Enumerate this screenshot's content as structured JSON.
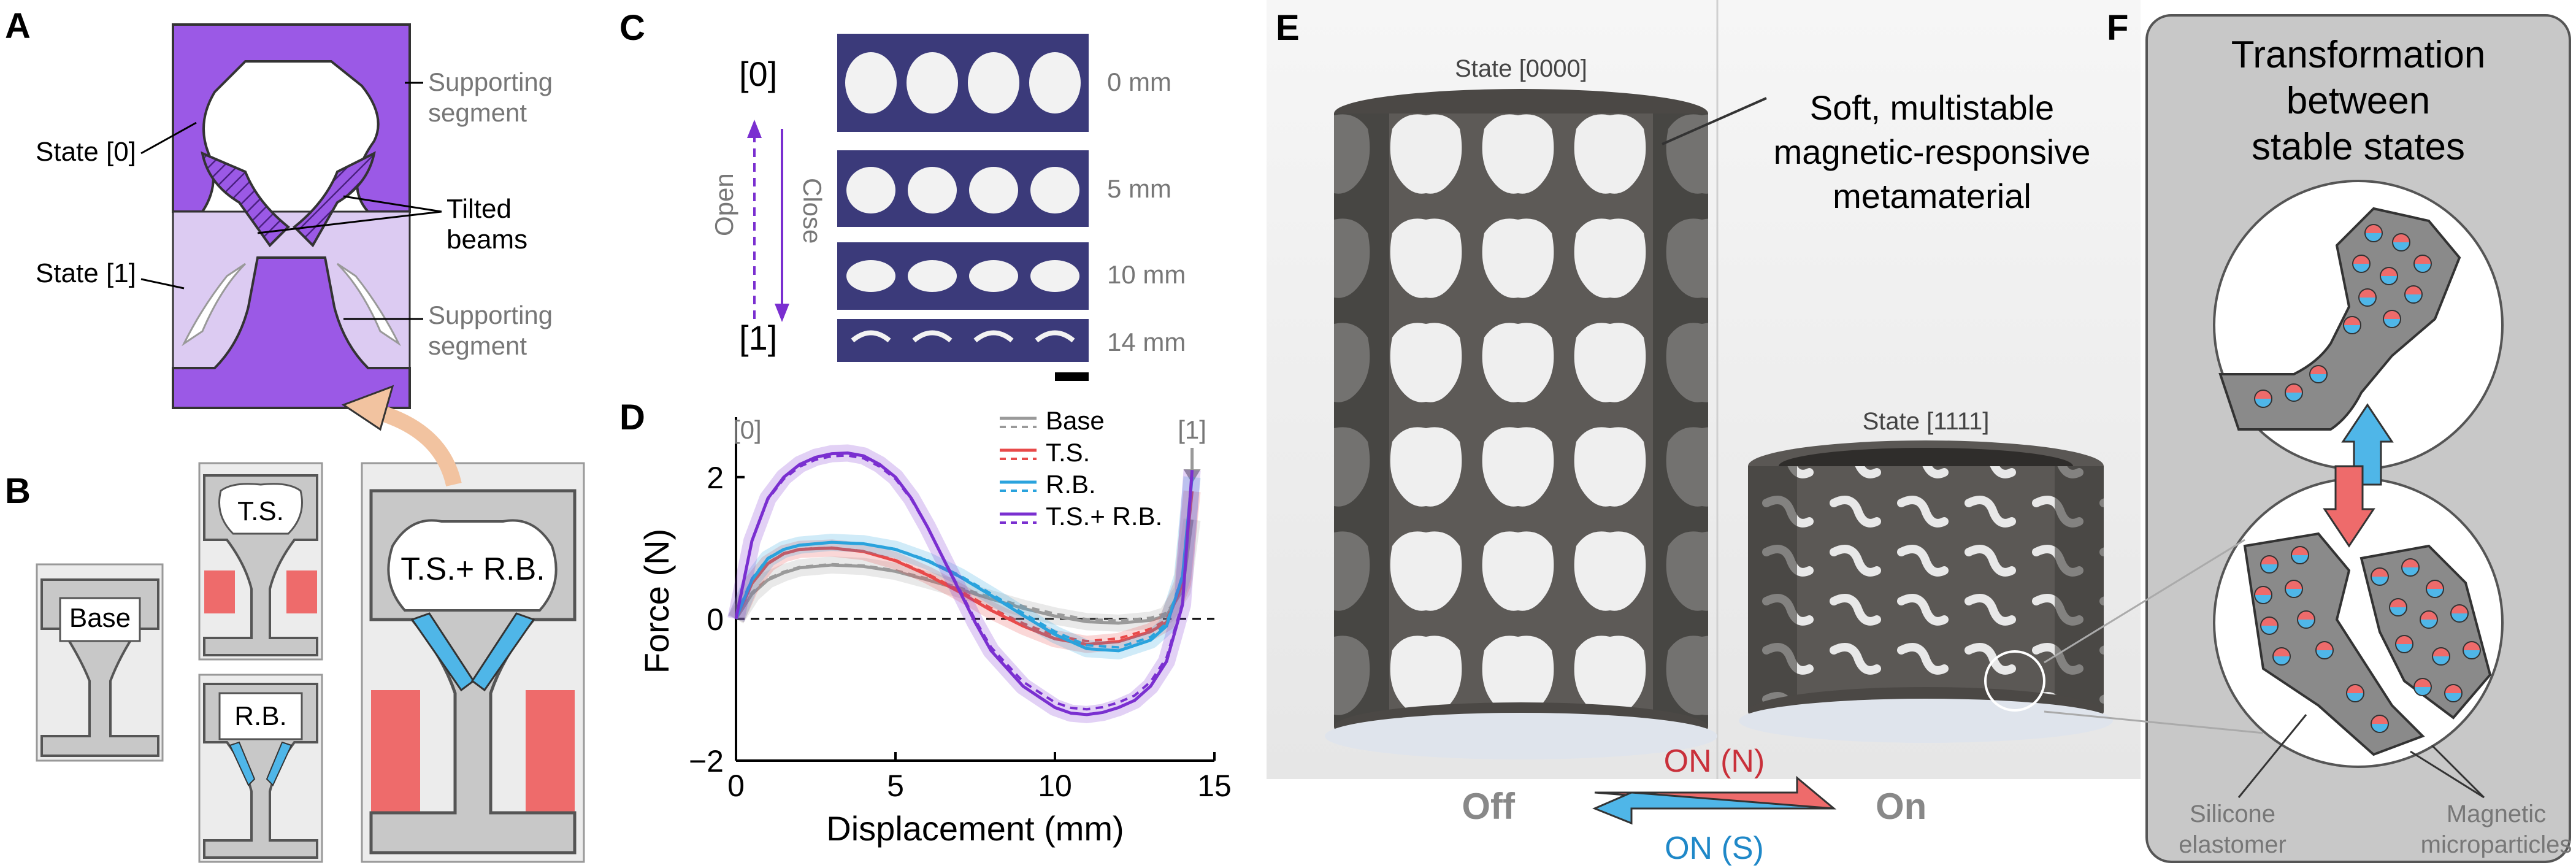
{
  "panels": {
    "A": {
      "label": "A",
      "state0": "State [0]",
      "state1": "State [1]",
      "supporting_top": [
        "Supporting",
        "segment"
      ],
      "tilted": [
        "Tilted",
        "beams"
      ],
      "supporting_bottom": [
        "Supporting",
        "segment"
      ]
    },
    "B": {
      "label": "B",
      "base": "Base",
      "ts": "T.S.",
      "rb": "R.B.",
      "tsrb": "T.S.+ R.B."
    },
    "C": {
      "label": "C",
      "state0": "[0]",
      "state1": "[1]",
      "open": "Open",
      "close": "Close",
      "displacements": [
        "0 mm",
        "5 mm",
        "10 mm",
        "14 mm"
      ]
    },
    "E": {
      "label": "E",
      "state_tall": "State [0000]",
      "state_short": "State [1111]",
      "callout": [
        "Soft, multistable",
        "magnetic-responsive",
        "metamaterial"
      ],
      "off": "Off",
      "on": "On",
      "on_n": "ON (N)",
      "on_s": "ON (S)"
    },
    "F": {
      "label": "F",
      "title": [
        "Transformation",
        "between",
        "stable states"
      ],
      "silicone": [
        "Silicone",
        "elastomer"
      ],
      "magnetic": [
        "Magnetic",
        "microparticles"
      ]
    }
  },
  "colors": {
    "purple": "#9b59e6",
    "light_purple": "#dccbf2",
    "red": "#ee6b6b",
    "blue": "#4fb6e8",
    "gray_fill": "#c8c8c8",
    "navy": "#3b3a7a"
  },
  "chart_data": {
    "type": "line",
    "panel_label": "D",
    "xlabel": "Displacement (mm)",
    "ylabel": "Force (N)",
    "xlim": [
      0,
      15
    ],
    "ylim": [
      -2,
      2.5
    ],
    "xticks": [
      0,
      5,
      10,
      15
    ],
    "yticks": [
      -2,
      0,
      2
    ],
    "top_annotations": [
      "[0]",
      "[1]"
    ],
    "legend_position": "top-right",
    "series": [
      {
        "name": "Base",
        "color": "#9a9a9a",
        "x": [
          0,
          0.5,
          1,
          1.5,
          2,
          3,
          4,
          5,
          6,
          7,
          8,
          9,
          10,
          11,
          12,
          13,
          13.5,
          14,
          14.3
        ],
        "y": [
          0,
          0.35,
          0.55,
          0.65,
          0.72,
          0.76,
          0.74,
          0.67,
          0.55,
          0.42,
          0.28,
          0.15,
          0.04,
          -0.04,
          -0.06,
          -0.02,
          0.05,
          0.4,
          1.4
        ]
      },
      {
        "name": "T.S.",
        "color": "#e84a4a",
        "x": [
          0,
          0.5,
          1,
          1.5,
          2,
          3,
          4,
          5,
          6,
          7,
          8,
          9,
          10,
          11,
          12,
          13,
          13.5,
          14,
          14.3
        ],
        "y": [
          0,
          0.5,
          0.78,
          0.92,
          0.98,
          1.0,
          0.95,
          0.82,
          0.62,
          0.38,
          0.12,
          -0.1,
          -0.28,
          -0.36,
          -0.32,
          -0.18,
          -0.05,
          0.5,
          1.8
        ]
      },
      {
        "name": "R.B.",
        "color": "#2aa3dd",
        "x": [
          0,
          0.5,
          1,
          1.5,
          2,
          3,
          4,
          5,
          6,
          7,
          8,
          9,
          10,
          11,
          12,
          13,
          13.5,
          14,
          14.3
        ],
        "y": [
          0,
          0.55,
          0.85,
          0.98,
          1.04,
          1.08,
          1.06,
          0.98,
          0.82,
          0.6,
          0.33,
          0.05,
          -0.22,
          -0.42,
          -0.45,
          -0.3,
          -0.1,
          0.6,
          2.0
        ]
      },
      {
        "name": "T.S.+ R.B.",
        "color": "#7a2fd0",
        "x": [
          0,
          0.5,
          1,
          1.5,
          2,
          2.5,
          3,
          3.5,
          4,
          4.5,
          5,
          5.5,
          6,
          6.5,
          7,
          7.5,
          8,
          9,
          10,
          10.5,
          11,
          11.5,
          12,
          12.5,
          13,
          13.5,
          14,
          14.3
        ],
        "y": [
          0,
          1.1,
          1.7,
          2.0,
          2.18,
          2.28,
          2.33,
          2.34,
          2.3,
          2.18,
          2.0,
          1.7,
          1.3,
          0.85,
          0.4,
          -0.05,
          -0.45,
          -0.95,
          -1.25,
          -1.33,
          -1.35,
          -1.32,
          -1.25,
          -1.15,
          -0.95,
          -0.6,
          0.2,
          2.1
        ]
      }
    ]
  }
}
